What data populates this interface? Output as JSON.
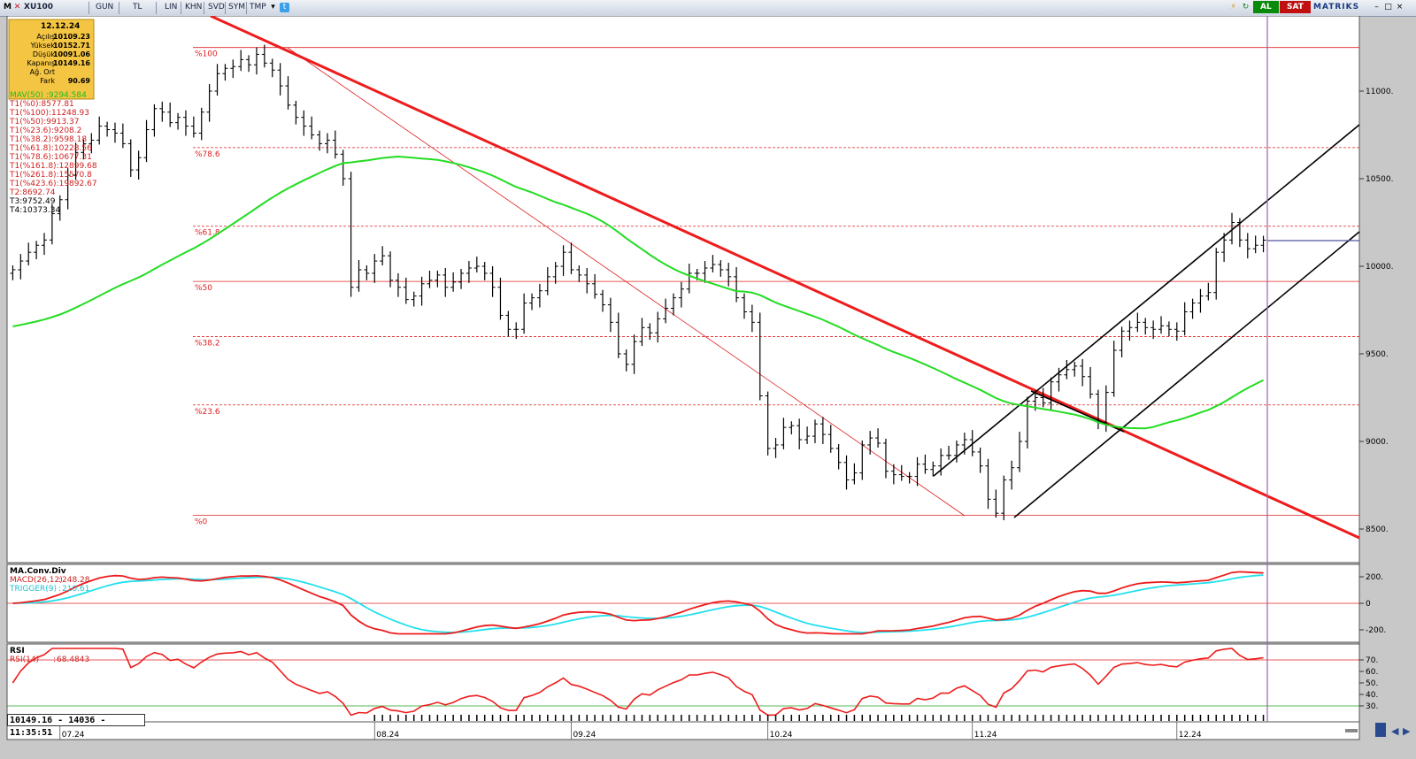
{
  "toolbar": {
    "symbol": "XU100",
    "buttons": [
      "GUN",
      "TL",
      "LIN",
      "KHN",
      "SVD",
      "SYM",
      "TMP"
    ],
    "al_label": "AL",
    "sat_label": "SAT",
    "brand": "MATRIKS",
    "icon_names": [
      "m-logo-icon",
      "close-icon",
      "dropdown-arrow-icon",
      "twitter-icon",
      "lightning-icon",
      "refresh-icon",
      "minimize-icon",
      "restore-icon",
      "close-window-icon"
    ]
  },
  "info_box": {
    "date": "12.12.24",
    "rows": [
      {
        "label": "Açılış",
        "value": "10109.23"
      },
      {
        "label": "Yüksek",
        "value": "10152.71"
      },
      {
        "label": "Düşük",
        "value": "10091.06"
      },
      {
        "label": "Kapanış",
        "value": "10149.16"
      },
      {
        "label": "Ağ. Ort",
        "value": ""
      },
      {
        "label": "Fark",
        "value": "90.69"
      }
    ]
  },
  "legend": {
    "mav": "MAV(50)      :9294.584",
    "lines": [
      "T1(%0):8577.81",
      "T1(%100):11248.93",
      "T1(%50):9913.37",
      "T1(%23.6):9208.2",
      "T1(%38.2):9598.18",
      "T1(%61.8):10228.56",
      "T1(%78.6):10677.31",
      "T1(%161.8):12899.68",
      "T1(%261.8):15570.8",
      "T1(%423.6):19892.67",
      "T2:8692.74",
      "T3:9752.49",
      "T4:10373.34"
    ]
  },
  "fib_labels": [
    "%100",
    "%78.6",
    "%61.8",
    "%50",
    "%38.2",
    "%23.6",
    "%0"
  ],
  "status": "10149.16 - 14036 - 11:35:51",
  "colors": {
    "price_bars": "#000000",
    "trendline": "#ee1c1c",
    "mav": "#22dd22",
    "fib": "#e02020",
    "channel": "#000000",
    "macd": "#ee1c1c",
    "trigger": "#22e0ee",
    "rsi": "#ee1c1c",
    "cursor": "#a060b0",
    "background": "#ffffff",
    "al": "#0a8a0a",
    "sat": "#c01010"
  },
  "chart_data": [
    {
      "type": "ohlc",
      "title": "XU100",
      "x_labels": [
        "07.24",
        "08.24",
        "09.24",
        "10.24",
        "11.24",
        "12.24"
      ],
      "y_ticks": [
        "11000.",
        "10500.",
        "10000.",
        "9500.",
        "9000.",
        "8500."
      ],
      "y_axis_ticks": [
        11000,
        10500,
        10000,
        9500,
        9000,
        8500
      ],
      "ylim": [
        8400,
        11500
      ],
      "closes": [
        9980,
        10030,
        10080,
        10120,
        10150,
        10300,
        10380,
        10520,
        10650,
        10700,
        10720,
        10800,
        10780,
        10760,
        10700,
        10550,
        10620,
        10780,
        10900,
        10880,
        10820,
        10850,
        10800,
        10760,
        10880,
        11000,
        11100,
        11130,
        11140,
        11180,
        11150,
        11210,
        11160,
        11120,
        11030,
        10920,
        10850,
        10800,
        10750,
        10700,
        10720,
        10640,
        10500,
        9880,
        9980,
        9960,
        10030,
        10060,
        9920,
        9880,
        9810,
        9830,
        9900,
        9920,
        9950,
        9880,
        9910,
        9960,
        9990,
        10000,
        9960,
        9880,
        9720,
        9640,
        9640,
        9790,
        9820,
        9860,
        9940,
        10000,
        10080,
        9980,
        9950,
        9900,
        9840,
        9780,
        9680,
        9500,
        9440,
        9570,
        9650,
        9620,
        9700,
        9760,
        9820,
        9870,
        9960,
        9960,
        9990,
        10010,
        9980,
        9940,
        9820,
        9740,
        9680,
        9260,
        8960,
        8980,
        9080,
        9090,
        9010,
        9030,
        9100,
        9040,
        8960,
        8880,
        8780,
        8820,
        8980,
        9020,
        8990,
        8830,
        8810,
        8800,
        8800,
        8870,
        8840,
        8860,
        8920,
        8920,
        8980,
        9010,
        8940,
        8860,
        8670,
        8590,
        8780,
        8850,
        9000,
        9230,
        9250,
        9220,
        9340,
        9380,
        9410,
        9430,
        9370,
        9270,
        9110,
        9280,
        9520,
        9630,
        9650,
        9680,
        9650,
        9640,
        9660,
        9640,
        9630,
        9740,
        9790,
        9830,
        9850,
        10080,
        10150,
        10250,
        10150,
        10100,
        10120,
        10149.16
      ],
      "mav": {
        "name": "MAV(50)",
        "last": 9294.584
      },
      "fibonacci": [
        {
          "level": "%100",
          "value": 11248.93
        },
        {
          "level": "%78.6",
          "value": 10677.31
        },
        {
          "level": "%61.8",
          "value": 10228.56
        },
        {
          "level": "%50",
          "value": 9913.37
        },
        {
          "level": "%38.2",
          "value": 9598.18
        },
        {
          "level": "%23.6",
          "value": 9208.2
        },
        {
          "level": "%0",
          "value": 8577.81
        }
      ]
    },
    {
      "type": "line",
      "title": "MA.Conv.Div",
      "series": [
        {
          "name": "MACD(26,12)",
          "last": 248.28
        },
        {
          "name": "TRIGGER(9)",
          "last": 210.61
        }
      ],
      "y_ticks": [
        "200.",
        "0",
        "-200."
      ],
      "y_axis_ticks": [
        200,
        0,
        -200
      ]
    },
    {
      "type": "line",
      "title": "RSI",
      "series": [
        {
          "name": "RSI(14)",
          "last": 68.4843
        }
      ],
      "y_ticks": [
        "70.",
        "60.",
        "50.",
        "40.",
        "30."
      ],
      "y_axis_ticks": [
        70,
        60,
        50,
        40,
        30
      ],
      "reference_lines": [
        70,
        30
      ]
    }
  ]
}
